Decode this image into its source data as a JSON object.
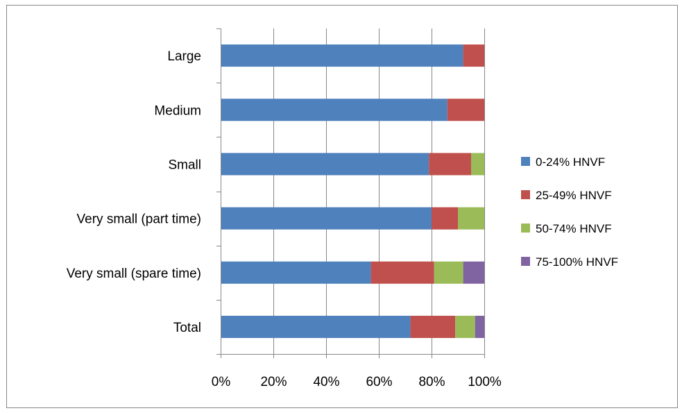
{
  "chart_data": {
    "type": "bar",
    "orientation": "horizontal",
    "stacked": "percent",
    "title": "",
    "xlabel": "",
    "ylabel": "",
    "categories": [
      "Large",
      "Medium",
      "Small",
      "Very small (part time)",
      "Very small (spare time)",
      "Total"
    ],
    "series": [
      {
        "name": "0-24% HNVF",
        "color": "#4F81BD",
        "values": [
          92,
          86,
          79,
          80,
          57,
          72
        ]
      },
      {
        "name": "25-49% HNVF",
        "color": "#C0504D",
        "values": [
          8,
          14,
          16,
          10,
          24,
          17
        ]
      },
      {
        "name": "50-74% HNVF",
        "color": "#9BBB59",
        "values": [
          0,
          0,
          5,
          10,
          11,
          7.5
        ]
      },
      {
        "name": "75-100% HNVF",
        "color": "#8064A2",
        "values": [
          0,
          0,
          0,
          0,
          8,
          3.5
        ]
      }
    ],
    "xlim": [
      0,
      100
    ],
    "x_ticks": [
      "0%",
      "20%",
      "40%",
      "60%",
      "80%",
      "100%"
    ],
    "grid": "vertical",
    "legend": "right"
  }
}
